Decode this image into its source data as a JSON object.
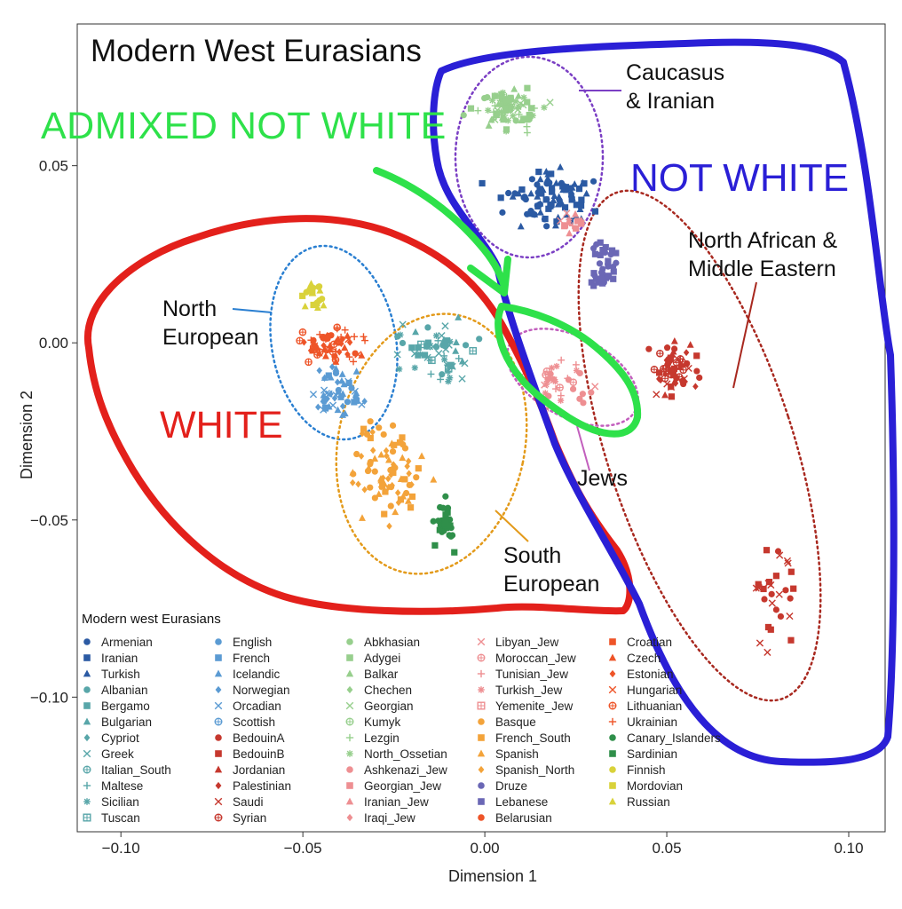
{
  "chart_data": {
    "type": "scatter",
    "title": "Modern West Eurasians",
    "xlabel": "Dimension 1",
    "ylabel": "Dimension 2",
    "xlim": [
      -0.112,
      0.11
    ],
    "ylim": [
      -0.138,
      0.09
    ],
    "x_ticks": [
      -0.1,
      -0.05,
      0.0,
      0.05,
      0.1
    ],
    "x_tick_labels": [
      "−0.10",
      "−0.05",
      "0.00",
      "0.05",
      "0.10"
    ],
    "y_ticks": [
      -0.1,
      -0.05,
      0.0,
      0.05
    ],
    "y_tick_labels": [
      "−0.10",
      "−0.05",
      "0.00",
      "0.05"
    ],
    "grid": false,
    "legend_title": "Modern west Eurasians",
    "legend_placement": "bottom-inside",
    "legend_entries": [
      {
        "name": "Armenian",
        "color": "#2b5aa3",
        "marker": "circle"
      },
      {
        "name": "Iranian",
        "color": "#2b5aa3",
        "marker": "square"
      },
      {
        "name": "Turkish",
        "color": "#2b5aa3",
        "marker": "triangle"
      },
      {
        "name": "Albanian",
        "color": "#58a6a9",
        "marker": "circle"
      },
      {
        "name": "Bergamo",
        "color": "#58a6a9",
        "marker": "square"
      },
      {
        "name": "Bulgarian",
        "color": "#58a6a9",
        "marker": "triangle"
      },
      {
        "name": "Cypriot",
        "color": "#58a6a9",
        "marker": "diamond"
      },
      {
        "name": "Greek",
        "color": "#58a6a9",
        "marker": "x"
      },
      {
        "name": "Italian_South",
        "color": "#58a6a9",
        "marker": "circleplus"
      },
      {
        "name": "Maltese",
        "color": "#58a6a9",
        "marker": "plus"
      },
      {
        "name": "Sicilian",
        "color": "#58a6a9",
        "marker": "asterisk"
      },
      {
        "name": "Tuscan",
        "color": "#58a6a9",
        "marker": "squareplus"
      },
      {
        "name": "English",
        "color": "#5b9bd3",
        "marker": "circle"
      },
      {
        "name": "French",
        "color": "#5b9bd3",
        "marker": "square"
      },
      {
        "name": "Icelandic",
        "color": "#5b9bd3",
        "marker": "triangle"
      },
      {
        "name": "Norwegian",
        "color": "#5b9bd3",
        "marker": "diamond"
      },
      {
        "name": "Orcadian",
        "color": "#5b9bd3",
        "marker": "x"
      },
      {
        "name": "Scottish",
        "color": "#5b9bd3",
        "marker": "circleplus"
      },
      {
        "name": "BedouinA",
        "color": "#c6382e",
        "marker": "circle"
      },
      {
        "name": "BedouinB",
        "color": "#c6382e",
        "marker": "square"
      },
      {
        "name": "Jordanian",
        "color": "#c6382e",
        "marker": "triangle"
      },
      {
        "name": "Palestinian",
        "color": "#c6382e",
        "marker": "diamond"
      },
      {
        "name": "Saudi",
        "color": "#c6382e",
        "marker": "x"
      },
      {
        "name": "Syrian",
        "color": "#c6382e",
        "marker": "circleplus"
      },
      {
        "name": "Abkhasian",
        "color": "#97cf8d",
        "marker": "circle"
      },
      {
        "name": "Adygei",
        "color": "#97cf8d",
        "marker": "square"
      },
      {
        "name": "Balkar",
        "color": "#97cf8d",
        "marker": "triangle"
      },
      {
        "name": "Chechen",
        "color": "#97cf8d",
        "marker": "diamond"
      },
      {
        "name": "Georgian",
        "color": "#97cf8d",
        "marker": "x"
      },
      {
        "name": "Kumyk",
        "color": "#97cf8d",
        "marker": "circleplus"
      },
      {
        "name": "Lezgin",
        "color": "#97cf8d",
        "marker": "plus"
      },
      {
        "name": "North_Ossetian",
        "color": "#97cf8d",
        "marker": "asterisk"
      },
      {
        "name": "Ashkenazi_Jew",
        "color": "#ee8f92",
        "marker": "circle"
      },
      {
        "name": "Georgian_Jew",
        "color": "#ee8f92",
        "marker": "square"
      },
      {
        "name": "Iranian_Jew",
        "color": "#ee8f92",
        "marker": "triangle"
      },
      {
        "name": "Iraqi_Jew",
        "color": "#ee8f92",
        "marker": "diamond"
      },
      {
        "name": "Libyan_Jew",
        "color": "#ee8f92",
        "marker": "x"
      },
      {
        "name": "Moroccan_Jew",
        "color": "#ee8f92",
        "marker": "circleplus"
      },
      {
        "name": "Tunisian_Jew",
        "color": "#ee8f92",
        "marker": "plus"
      },
      {
        "name": "Turkish_Jew",
        "color": "#ee8f92",
        "marker": "asterisk"
      },
      {
        "name": "Yemenite_Jew",
        "color": "#ee8f92",
        "marker": "squareplus"
      },
      {
        "name": "Basque",
        "color": "#f3a33a",
        "marker": "circle"
      },
      {
        "name": "French_South",
        "color": "#f3a33a",
        "marker": "square"
      },
      {
        "name": "Spanish",
        "color": "#f3a33a",
        "marker": "triangle"
      },
      {
        "name": "Spanish_North",
        "color": "#f3a33a",
        "marker": "diamond"
      },
      {
        "name": "Druze",
        "color": "#6a67b5",
        "marker": "circle"
      },
      {
        "name": "Lebanese",
        "color": "#6a67b5",
        "marker": "square"
      },
      {
        "name": "Belarusian",
        "color": "#ee5428",
        "marker": "circle"
      },
      {
        "name": "Croatian",
        "color": "#ee5428",
        "marker": "square"
      },
      {
        "name": "Czech",
        "color": "#ee5428",
        "marker": "triangle"
      },
      {
        "name": "Estonian",
        "color": "#ee5428",
        "marker": "diamond"
      },
      {
        "name": "Hungarian",
        "color": "#ee5428",
        "marker": "x"
      },
      {
        "name": "Lithuanian",
        "color": "#ee5428",
        "marker": "circleplus"
      },
      {
        "name": "Ukrainian",
        "color": "#ee5428",
        "marker": "plus"
      },
      {
        "name": "Canary_Islanders",
        "color": "#2f8f4a",
        "marker": "circle"
      },
      {
        "name": "Sardinian",
        "color": "#2f8f4a",
        "marker": "square"
      },
      {
        "name": "Finnish",
        "color": "#d9d23a",
        "marker": "circle"
      },
      {
        "name": "Mordovian",
        "color": "#d9d23a",
        "marker": "square"
      },
      {
        "name": "Russian",
        "color": "#d9d23a",
        "marker": "triangle"
      }
    ],
    "clusters": [
      {
        "color": "#2b5aa3",
        "markers": [
          "circle",
          "square",
          "triangle"
        ],
        "cx": 0.018,
        "cy": 0.041,
        "sx": 0.012,
        "sy": 0.008,
        "n": 90
      },
      {
        "color": "#97cf8d",
        "markers": [
          "circle",
          "square",
          "triangle",
          "x",
          "asterisk",
          "plus"
        ],
        "cx": 0.007,
        "cy": 0.066,
        "sx": 0.009,
        "sy": 0.006,
        "n": 80
      },
      {
        "color": "#6a67b5",
        "markers": [
          "circle",
          "square"
        ],
        "cx": 0.033,
        "cy": 0.021,
        "sx": 0.004,
        "sy": 0.007,
        "n": 40
      },
      {
        "color": "#ee8f92",
        "markers": [
          "square",
          "triangle",
          "x",
          "asterisk",
          "circleplus",
          "plus"
        ],
        "cx": 0.025,
        "cy": 0.033,
        "sx": 0.004,
        "sy": 0.004,
        "n": 14
      },
      {
        "color": "#ee8f92",
        "markers": [
          "x",
          "asterisk",
          "circleplus",
          "plus",
          "circle"
        ],
        "cx": 0.021,
        "cy": -0.012,
        "sx": 0.01,
        "sy": 0.006,
        "n": 35
      },
      {
        "color": "#c6382e",
        "markers": [
          "circle",
          "square",
          "diamond",
          "triangle",
          "x",
          "circleplus"
        ],
        "cx": 0.051,
        "cy": -0.008,
        "sx": 0.007,
        "sy": 0.007,
        "n": 60
      },
      {
        "color": "#c6382e",
        "markers": [
          "square",
          "circle",
          "x"
        ],
        "cx": 0.08,
        "cy": -0.072,
        "sx": 0.006,
        "sy": 0.02,
        "n": 30
      },
      {
        "color": "#ee5428",
        "markers": [
          "circle",
          "triangle",
          "diamond",
          "plus",
          "x",
          "circleplus"
        ],
        "cx": -0.042,
        "cy": -0.001,
        "sx": 0.009,
        "sy": 0.005,
        "n": 60
      },
      {
        "color": "#5b9bd3",
        "markers": [
          "circle",
          "square",
          "x",
          "diamond",
          "triangle"
        ],
        "cx": -0.04,
        "cy": -0.013,
        "sx": 0.007,
        "sy": 0.006,
        "n": 50
      },
      {
        "color": "#d9d23a",
        "markers": [
          "circle",
          "square",
          "triangle"
        ],
        "cx": -0.047,
        "cy": 0.014,
        "sx": 0.003,
        "sy": 0.005,
        "n": 22
      },
      {
        "color": "#58a6a9",
        "markers": [
          "circle",
          "square",
          "triangle",
          "x",
          "asterisk",
          "squareplus",
          "plus"
        ],
        "cx": -0.013,
        "cy": -0.003,
        "sx": 0.011,
        "sy": 0.009,
        "n": 60
      },
      {
        "color": "#f3a33a",
        "markers": [
          "circle",
          "triangle",
          "square",
          "diamond"
        ],
        "cx": -0.026,
        "cy": -0.036,
        "sx": 0.01,
        "sy": 0.013,
        "n": 80
      },
      {
        "color": "#2f8f4a",
        "markers": [
          "square",
          "circle"
        ],
        "cx": -0.011,
        "cy": -0.052,
        "sx": 0.003,
        "sy": 0.006,
        "n": 30
      }
    ]
  },
  "annotations": {
    "title": "Modern West Eurasians",
    "caucasus": "Caucasus\n& Iranian",
    "north_african": "North African &\nMiddle Eastern",
    "north_european": "North\nEuropean",
    "south_european": "South\nEuropean",
    "jews": "Jews",
    "admixed": "ADMIXED NOT WHITE",
    "not_white": "NOT WHITE",
    "white": "WHITE"
  },
  "colors": {
    "white_region": "#e3201b",
    "not_white_region": "#2a1fd6",
    "admixed_region": "#2ee14a"
  }
}
